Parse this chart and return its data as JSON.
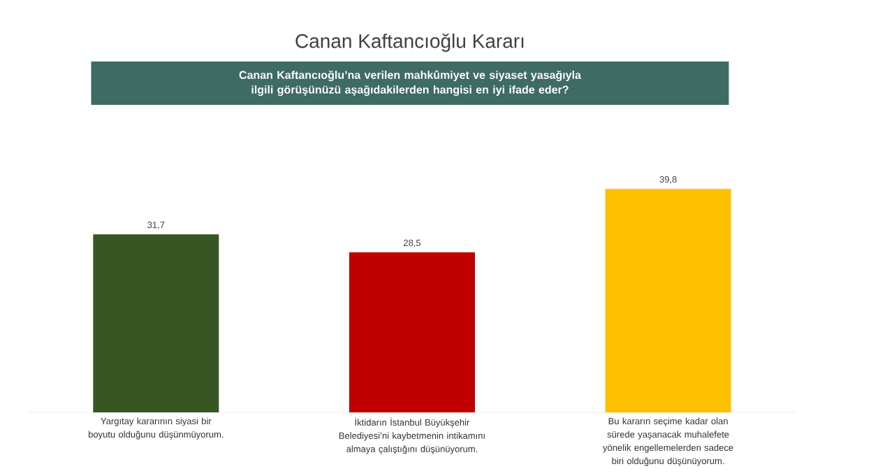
{
  "chart_data": {
    "type": "bar",
    "title": "Canan Kaftancıoğlu Kararı",
    "subtitle": "Canan Kaftancıoğlu’na verilen mahkûmiyet ve siyaset yasağıyla ilgili görüşünüzü aşağıdakilerden hangisi en iyi ifade eder?",
    "categories": [
      "Yargıtay kararının siyasi bir boyutu olduğunu düşünmüyorum.",
      "İktidarın İstanbul Büyükşehir Belediyesi’ni kaybetmenin intikamını almaya çalıştığını düşünüyorum.",
      "Bu kararın seçime kadar olan sürede yaşanacak muhalefete yönelik engellemelerden sadece biri olduğunu düşünüyorum."
    ],
    "values": [
      31.7,
      28.5,
      39.8
    ],
    "value_labels": [
      "31,7",
      "28,5",
      "39,8"
    ],
    "colors": [
      "#375623",
      "#c00000",
      "#ffc000"
    ],
    "tick_labels": "x",
    "grid": false
  }
}
